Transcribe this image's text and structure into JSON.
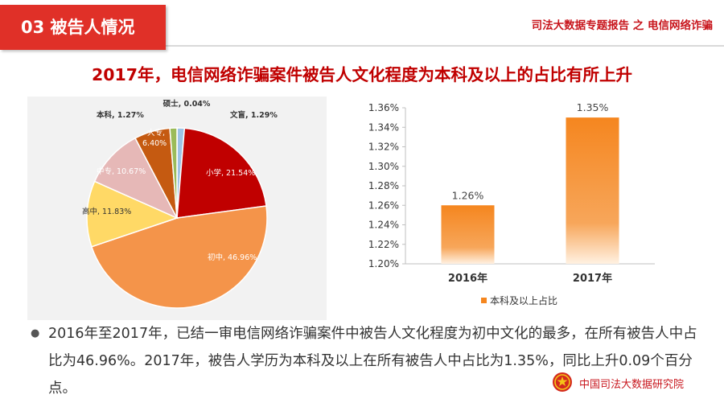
{
  "header": {
    "section_label": "03  被告人情况",
    "report_title": "司法大数据专题报告 之 电信网络诈骗"
  },
  "headline": "2017年，电信网络诈骗案件被告人文化程度为本科及以上的占比有所上升",
  "colors": {
    "accent_red": "#e03028",
    "title_red": "#c00000",
    "bar_orange": "#f5861f"
  },
  "chart_data": [
    {
      "type": "pie",
      "categories": [
        "硕士",
        "文盲",
        "小学",
        "初中",
        "高中",
        "中专",
        "大专",
        "本科"
      ],
      "values": [
        0.04,
        1.29,
        21.54,
        46.96,
        11.83,
        10.67,
        6.4,
        1.27
      ],
      "labels": [
        "硕士, 0.04%",
        "文盲, 1.29%",
        "小学, 21.54%",
        "初中, 46.96%",
        "高中, 11.83%",
        "中专, 10.67%",
        "大专, 6.40%",
        "本科, 1.27%"
      ],
      "colors": [
        "#2e75b6",
        "#9dc3e6",
        "#c00000",
        "#f4944a",
        "#ffd966",
        "#e6b8b7",
        "#c55a11",
        "#9bbb59"
      ],
      "title": ""
    },
    {
      "type": "bar",
      "categories": [
        "2016年",
        "2017年"
      ],
      "series": [
        {
          "name": "本科及以上占比",
          "values": [
            1.26,
            1.35
          ]
        }
      ],
      "data_labels": [
        "1.26%",
        "1.35%"
      ],
      "y_ticks": [
        "1.36%",
        "1.34%",
        "1.32%",
        "1.30%",
        "1.28%",
        "1.26%",
        "1.24%",
        "1.22%",
        "1.20%"
      ],
      "ylim": [
        1.2,
        1.36
      ],
      "legend_position": "bottom",
      "grid": true
    }
  ],
  "bullet": {
    "text": "2016年至2017年，已结一审电信网络诈骗案件中被告人文化程度为初中文化的最多，在所有被告人中占比为46.96%。2017年，被告人学历为本科及以上在所有被告人中占比为1.35%，同比上升0.09个百分点。"
  },
  "footer": {
    "institute_name": "中国司法大数据研究院",
    "logo_icon": "national-emblem-icon"
  }
}
